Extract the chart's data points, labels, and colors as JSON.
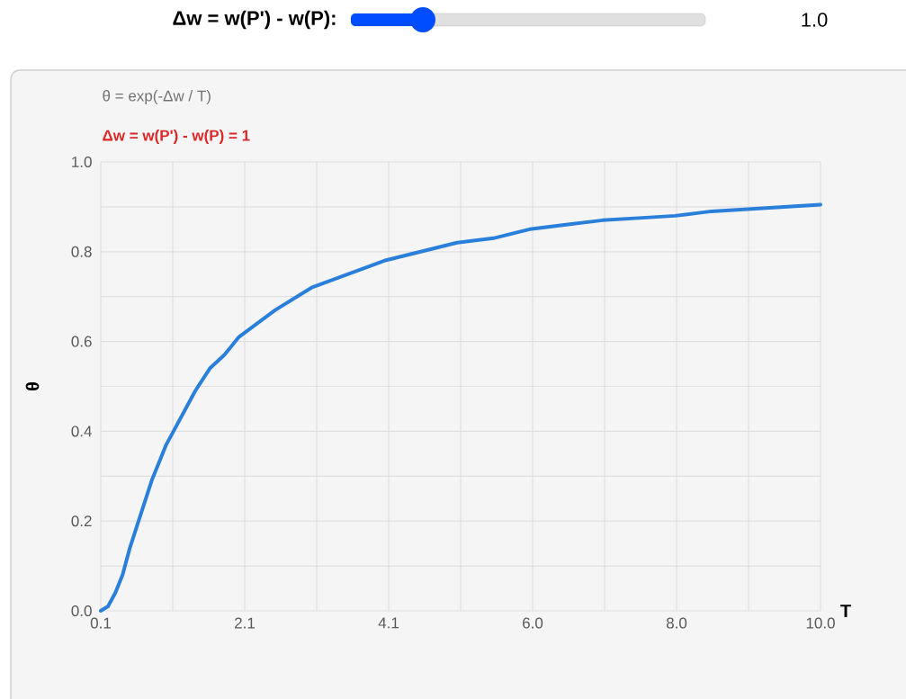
{
  "chart_data": {
    "type": "line",
    "annotations": [
      "Δw = w(P') - w(P):",
      "1.0",
      "θ = exp(-Δw / T)",
      "Δw = w(P') - w(P) = 1"
    ],
    "xlabel": "T",
    "ylabel": "θ",
    "x": [
      0.1,
      0.2,
      0.3,
      0.4,
      0.5,
      0.6,
      0.7,
      0.8,
      1.0,
      1.2,
      1.4,
      1.6,
      1.8,
      2.0,
      2.5,
      3.0,
      3.5,
      4.0,
      4.5,
      5.0,
      5.5,
      6.0,
      6.5,
      7.0,
      7.5,
      8.0,
      8.5,
      9.0,
      9.5,
      10.0
    ],
    "series": [
      {
        "color": "#2a7fdb",
        "values": [
          0.0,
          0.01,
          0.04,
          0.08,
          0.14,
          0.19,
          0.24,
          0.29,
          0.37,
          0.43,
          0.49,
          0.54,
          0.57,
          0.61,
          0.67,
          0.72,
          0.75,
          0.78,
          0.8,
          0.82,
          0.83,
          0.85,
          0.86,
          0.87,
          0.875,
          0.88,
          0.89,
          0.895,
          0.9,
          0.905
        ]
      }
    ],
    "xlim": [
      0.1,
      10.0
    ],
    "xticks": [
      {
        "value": 0.1,
        "label": "0.1"
      },
      {
        "value": 1.09,
        "label": null
      },
      {
        "value": 2.08,
        "label": "2.1"
      },
      {
        "value": 3.07,
        "label": null
      },
      {
        "value": 4.06,
        "label": "4.1"
      },
      {
        "value": 5.05,
        "label": null
      },
      {
        "value": 6.04,
        "label": "6.0"
      },
      {
        "value": 7.03,
        "label": null
      },
      {
        "value": 8.02,
        "label": "8.0"
      },
      {
        "value": 9.01,
        "label": null
      },
      {
        "value": 10.0,
        "label": "10.0"
      }
    ],
    "ylim": [
      0,
      1
    ],
    "yticks": [
      {
        "value": 0,
        "label": "0.0"
      },
      {
        "value": 0.1,
        "label": null
      },
      {
        "value": 0.2,
        "label": "0.2"
      },
      {
        "value": 0.3,
        "label": null
      },
      {
        "value": 0.4,
        "label": "0.4"
      },
      {
        "value": 0.5,
        "label": null
      },
      {
        "value": 0.6,
        "label": "0.6"
      },
      {
        "value": 0.7,
        "label": null
      },
      {
        "value": 0.8,
        "label": "0.8"
      },
      {
        "value": 0.9,
        "label": null
      },
      {
        "value": 1.0,
        "label": "1.0"
      }
    ],
    "grid": true,
    "marker": "none",
    "line_style": "solid"
  }
}
